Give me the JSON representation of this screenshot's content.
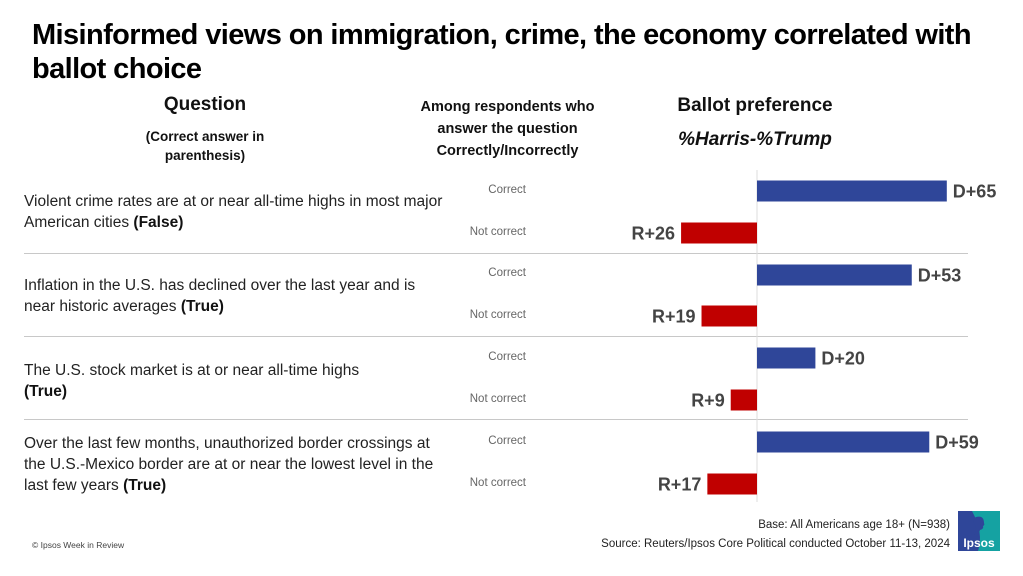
{
  "header": {
    "title": "Misinformed views on immigration, crime, the economy correlated with ballot choice",
    "col_question": "Question",
    "col_question_sub": "(Correct answer in parenthesis)",
    "col_among": "Among respondents who answer the question Correctly/Incorrectly",
    "col_ballot": "Ballot preference",
    "col_ballot_sub": "%Harris-%Trump"
  },
  "questions": [
    {
      "text": "Violent crime rates are at or near all-time highs in most major American cities ",
      "answer": "(False)"
    },
    {
      "text": "Inflation in the U.S. has declined over the last year and is near historic averages ",
      "answer": "(True)"
    },
    {
      "text": "The U.S. stock market is at or near all-time highs ",
      "answer": "(True)"
    },
    {
      "text": "Over the last few months, unauthorized border crossings at the U.S.-Mexico border are at or near the lowest level in the last few years ",
      "answer": "(True)"
    }
  ],
  "response_labels": {
    "correct": "Correct",
    "not_correct": "Not correct"
  },
  "colors": {
    "harris": "#2f4699",
    "trump": "#c00000",
    "label": "#444444",
    "separator": "#c8c8c8"
  },
  "chart_data": {
    "type": "bar",
    "orientation": "horizontal-diverging",
    "title": "Misinformed views on immigration, crime, the economy correlated with ballot choice",
    "xlabel": "Ballot preference %Harris-%Trump",
    "categories": [
      "Violent crime – Correct",
      "Violent crime – Not correct",
      "Inflation – Correct",
      "Inflation – Not correct",
      "Stock market – Correct",
      "Stock market – Not correct",
      "Border crossings – Correct",
      "Border crossings – Not correct"
    ],
    "values": [
      65,
      -26,
      53,
      -19,
      20,
      -9,
      59,
      -17
    ],
    "labels": [
      "D+65",
      "R+26",
      "D+53",
      "R+19",
      "D+20",
      "R+9",
      "D+59",
      "R+17"
    ],
    "grid": false
  },
  "footer": {
    "copyright": "© Ipsos Week in Review",
    "base": "Base: All Americans age 18+ (N=938)",
    "source": "Source: Reuters/Ipsos Core Political conducted October 11-13, 2024",
    "logo_text": "Ipsos"
  }
}
